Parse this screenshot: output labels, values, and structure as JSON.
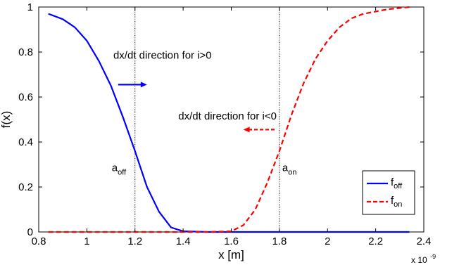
{
  "chart_data": {
    "type": "line",
    "xlabel": "x [m]",
    "ylabel": "f(x)",
    "x_multiplier": {
      "base": "x 10",
      "exponent": "-9"
    },
    "xlim": [
      0.8,
      2.4
    ],
    "ylim": [
      0,
      1
    ],
    "x_tick_labels": [
      "0.8",
      "1",
      "1.2",
      "1.4",
      "1.6",
      "1.8",
      "2",
      "2.2",
      "2.4"
    ],
    "y_tick_labels": [
      "0",
      "0.2",
      "0.4",
      "0.6",
      "0.8",
      "1"
    ],
    "series": [
      {
        "name": "f_off",
        "legend_main": "f",
        "legend_sub": "off",
        "color": "#0000ff",
        "dash": "solid",
        "x": [
          0.84,
          0.9,
          0.95,
          1.0,
          1.05,
          1.1,
          1.15,
          1.2,
          1.25,
          1.3,
          1.35,
          1.4,
          1.5,
          1.6,
          1.7,
          1.8,
          1.9,
          2.0,
          2.1,
          2.2,
          2.34
        ],
        "y": [
          0.97,
          0.946,
          0.91,
          0.85,
          0.76,
          0.65,
          0.51,
          0.36,
          0.2,
          0.09,
          0.02,
          0.003,
          0,
          0,
          0,
          0,
          0,
          0,
          0,
          0,
          0
        ]
      },
      {
        "name": "f_on",
        "legend_main": "f",
        "legend_sub": "on",
        "color": "#ff0000",
        "dash": "dashed",
        "x": [
          0.84,
          1.0,
          1.2,
          1.4,
          1.5,
          1.6,
          1.65,
          1.7,
          1.75,
          1.8,
          1.85,
          1.9,
          1.95,
          2.0,
          2.05,
          2.1,
          2.15,
          2.2,
          2.25,
          2.34
        ],
        "y": [
          0,
          0,
          0,
          0,
          0,
          0.003,
          0.03,
          0.1,
          0.22,
          0.36,
          0.52,
          0.66,
          0.77,
          0.85,
          0.91,
          0.95,
          0.97,
          0.98,
          0.99,
          1.0
        ]
      }
    ],
    "vlines": [
      {
        "x": 1.2,
        "label_main": "a",
        "label_sub": "off",
        "label_y": 0.27
      },
      {
        "x": 1.8,
        "label_main": "a",
        "label_sub": "on",
        "label_y": 0.27
      }
    ],
    "annotations": [
      {
        "text": "dx/dt direction for i>0",
        "x": 1.11,
        "y": 0.77,
        "color": "#0000ff",
        "arrow_from": [
          1.13,
          0.655
        ],
        "arrow_to": [
          1.25,
          0.655
        ],
        "dash": "solid"
      },
      {
        "text": "dx/dt direction for i<0",
        "x": 1.38,
        "y": 0.5,
        "color": "#ff0000",
        "arrow_from": [
          1.78,
          0.455
        ],
        "arrow_to": [
          1.65,
          0.455
        ],
        "dash": "dashed"
      }
    ],
    "legend": {
      "position": "bottom-right"
    },
    "grid": false
  }
}
